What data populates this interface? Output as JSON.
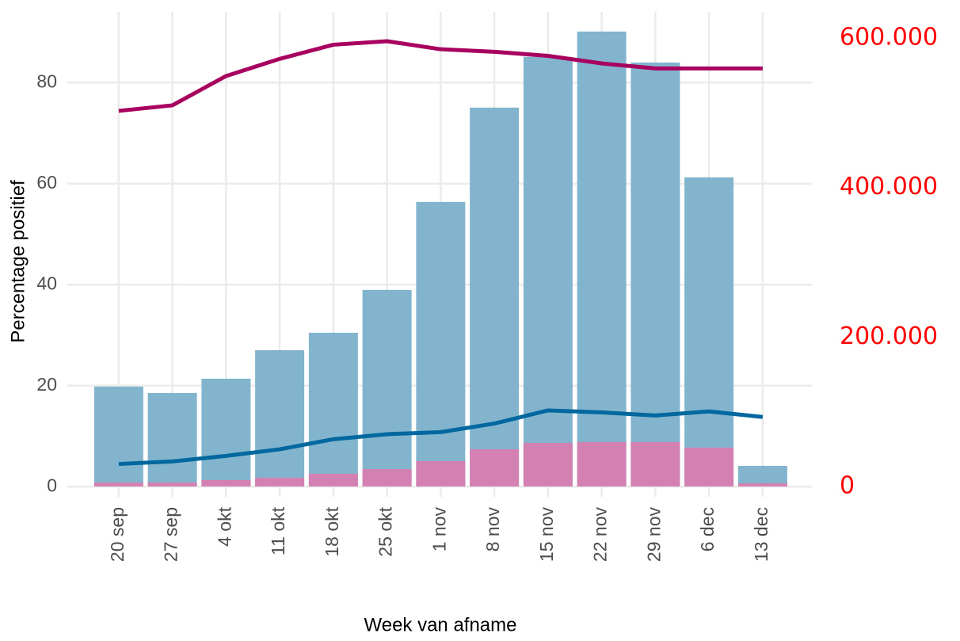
{
  "chart_data": {
    "type": "bar-line",
    "x_label": "Week van afname",
    "y_label": "Percentage positief",
    "categories": [
      "20 sep",
      "27 sep",
      "4 okt",
      "11 okt",
      "18 okt",
      "25 okt",
      "1 nov",
      "8 nov",
      "15 nov",
      "22 nov",
      "29 nov",
      "6 dec",
      "13 dec"
    ],
    "ylim": [
      -2,
      94
    ],
    "yticks": [
      0,
      20,
      40,
      60,
      80
    ],
    "y2lim": [
      -13800,
      635000
    ],
    "y2ticks": [
      0,
      {
        "value": 200000,
        "label": "200.000"
      },
      {
        "value": 400000,
        "label": "400.000"
      },
      {
        "value": 600000,
        "label": "600.000"
      }
    ],
    "y2tick_color": "#ff0000",
    "grid": true,
    "bars": [
      {
        "color": "#7fb2cc",
        "axis": "y2",
        "values": [
          133600,
          125100,
          144200,
          182400,
          205700,
          263000,
          380700,
          506900,
          574800,
          608700,
          567300,
          413600,
          27600
        ]
      },
      {
        "color": "#d67fb2",
        "axis": "y2",
        "values": [
          5300,
          5300,
          8500,
          11700,
          17000,
          23300,
          33900,
          49800,
          58300,
          59400,
          59400,
          52000,
          4200
        ]
      }
    ],
    "series": [
      {
        "color": "#a8005e",
        "values": [
          74.4,
          75.5,
          81.3,
          84.7,
          87.5,
          88.2,
          86.6,
          86.1,
          85.3,
          83.8,
          82.8,
          82.8,
          82.8
        ]
      },
      {
        "color": "#00689e",
        "values": [
          4.5,
          5.0,
          6.1,
          7.4,
          9.4,
          10.4,
          10.8,
          12.5,
          15.1,
          14.7,
          14.1,
          14.9,
          13.8
        ]
      }
    ]
  }
}
